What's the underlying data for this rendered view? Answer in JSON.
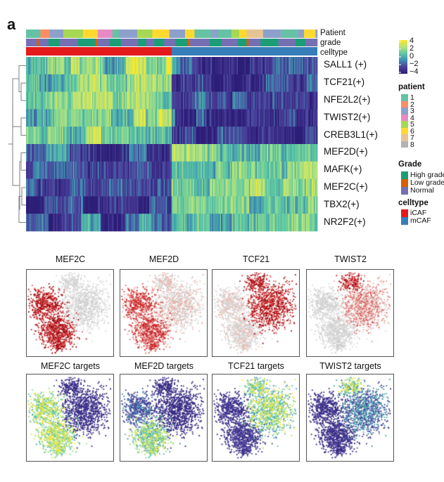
{
  "figure": {
    "panel_label": "a"
  },
  "chart_data": [
    {
      "type": "heatmap",
      "title": "",
      "annotation_tracks": [
        "Patient",
        "grade",
        "celltype"
      ],
      "rows": [
        "SALL1 (+)",
        "TCF21(+)",
        "NFE2L2(+)",
        "TWIST2(+)",
        "CREB3L1(+)",
        "MEF2D(+)",
        "MAFK(+)",
        "MEF2C(+)",
        "TBX2(+)",
        "NR2F2(+)"
      ],
      "row_means_by_celltype": {
        "iCAF": [
          1.2,
          1.6,
          1.3,
          1.1,
          1.4,
          -2.4,
          -2.5,
          -2.6,
          -2.3,
          -2.0
        ],
        "mCAF": [
          -2.5,
          -2.8,
          -2.2,
          -2.6,
          -2.7,
          1.4,
          1.2,
          1.6,
          1.5,
          1.0
        ]
      },
      "column_split_fraction_iCAF": 0.5,
      "colorbar": {
        "range": [
          -4,
          4
        ],
        "ticks": [
          "4",
          "2",
          "0",
          "−2",
          "−4"
        ],
        "colors": [
          "#FDE725",
          "#B8E37A",
          "#5CC8A3",
          "#3E8FB0",
          "#4B3F9A",
          "#2C1E77"
        ]
      },
      "dendrogram": "rows",
      "legend": {
        "patient": {
          "title": "patient",
          "items": [
            {
              "label": "1",
              "color": "#66C2A5"
            },
            {
              "label": "2",
              "color": "#FC8D62"
            },
            {
              "label": "3",
              "color": "#8DA0CB"
            },
            {
              "label": "4",
              "color": "#E78AC3"
            },
            {
              "label": "5",
              "color": "#A6D854"
            },
            {
              "label": "6",
              "color": "#FFD92F"
            },
            {
              "label": "7",
              "color": "#E5C494"
            },
            {
              "label": "8",
              "color": "#B3B3B3"
            }
          ]
        },
        "grade": {
          "title": "Grade",
          "items": [
            {
              "label": "High grade",
              "color": "#1B9E77"
            },
            {
              "label": "Low grade",
              "color": "#D95F02"
            },
            {
              "label": "Normal",
              "color": "#7570B3"
            }
          ]
        },
        "celltype": {
          "title": "celltype",
          "items": [
            {
              "label": "iCAF",
              "color": "#E41A1C"
            },
            {
              "label": "mCAF",
              "color": "#377EB8"
            }
          ]
        }
      }
    },
    {
      "type": "scatter",
      "subtype": "tSNE expression panels",
      "panels": [
        {
          "title": "MEF2C",
          "colormap": "reds",
          "high_region": "left-clusters"
        },
        {
          "title": "MEF2D",
          "colormap": "reds",
          "high_region": "left-clusters-weak"
        },
        {
          "title": "TCF21",
          "colormap": "reds",
          "high_region": "right-cluster"
        },
        {
          "title": "TWIST2",
          "colormap": "reds",
          "high_region": "top-right-weak"
        },
        {
          "title": "MEF2C targets",
          "colormap": "viridis",
          "high_region": "left-clusters"
        },
        {
          "title": "MEF2D targets",
          "colormap": "viridis",
          "high_region": "bottom-left-cluster"
        },
        {
          "title": "TCF21 targets",
          "colormap": "viridis",
          "high_region": "right-cluster"
        },
        {
          "title": "TWIST2 targets",
          "colormap": "viridis",
          "high_region": "top-right-weak"
        }
      ],
      "xlabel": "",
      "ylabel": "",
      "grid": false
    }
  ]
}
